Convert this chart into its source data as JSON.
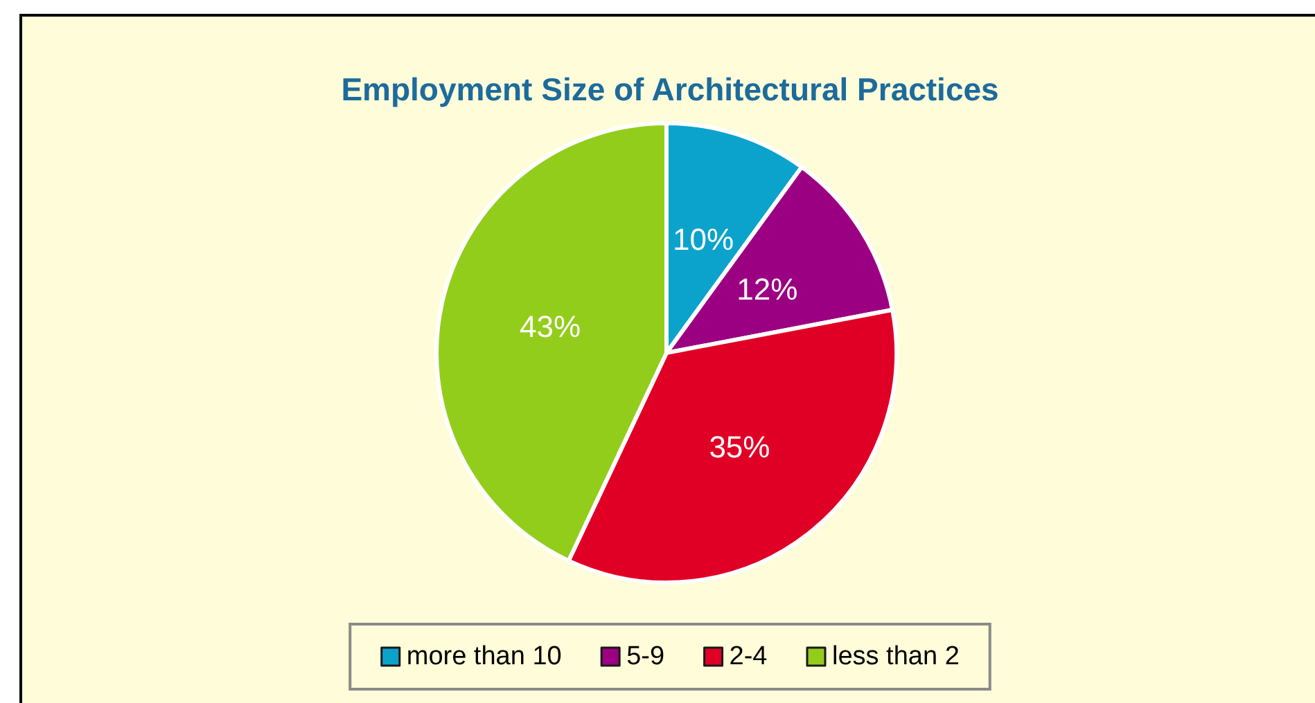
{
  "chart_data": {
    "type": "pie",
    "title": "Employment Size of Architectural Practices",
    "categories": [
      "more than 10",
      "5-9",
      "2-4",
      "less than 2"
    ],
    "values": [
      10,
      12,
      35,
      43
    ],
    "colors": [
      "#0ba3cc",
      "#9c0082",
      "#e00026",
      "#93cd1b"
    ],
    "value_labels": [
      "10%",
      "12%",
      "35%",
      "43%"
    ],
    "legend": "bottom"
  }
}
